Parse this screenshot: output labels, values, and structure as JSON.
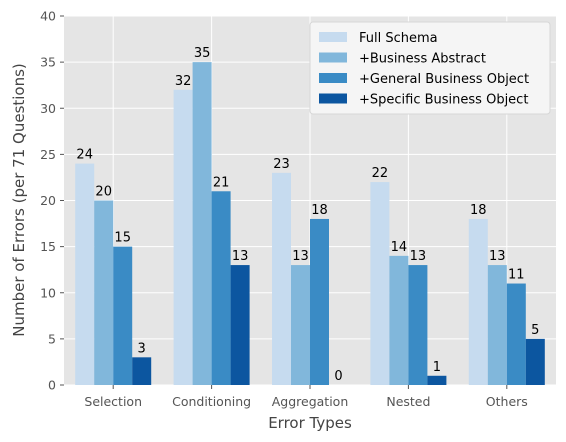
{
  "chart_data": {
    "type": "bar",
    "title": "",
    "xlabel": "Error Types",
    "ylabel": "Number of Errors (per 71 Questions)",
    "categories": [
      "Selection",
      "Conditioning",
      "Aggregation",
      "Nested",
      "Others"
    ],
    "ylim": [
      0,
      40
    ],
    "yticks": [
      0,
      5,
      10,
      15,
      20,
      25,
      30,
      35,
      40
    ],
    "grid": true,
    "legend_position": "top-right",
    "series": [
      {
        "name": "Full Schema",
        "values": [
          24,
          32,
          23,
          22,
          18
        ],
        "color": "#c6dbef"
      },
      {
        "name": "+Business Abstract",
        "values": [
          20,
          35,
          13,
          14,
          13
        ],
        "color": "#81b7db"
      },
      {
        "name": "+General Business Object",
        "values": [
          15,
          21,
          18,
          13,
          11
        ],
        "color": "#3a8bc5"
      },
      {
        "name": "+Specific Business Object",
        "values": [
          3,
          13,
          0,
          1,
          5
        ],
        "color": "#0c56a0"
      }
    ]
  }
}
